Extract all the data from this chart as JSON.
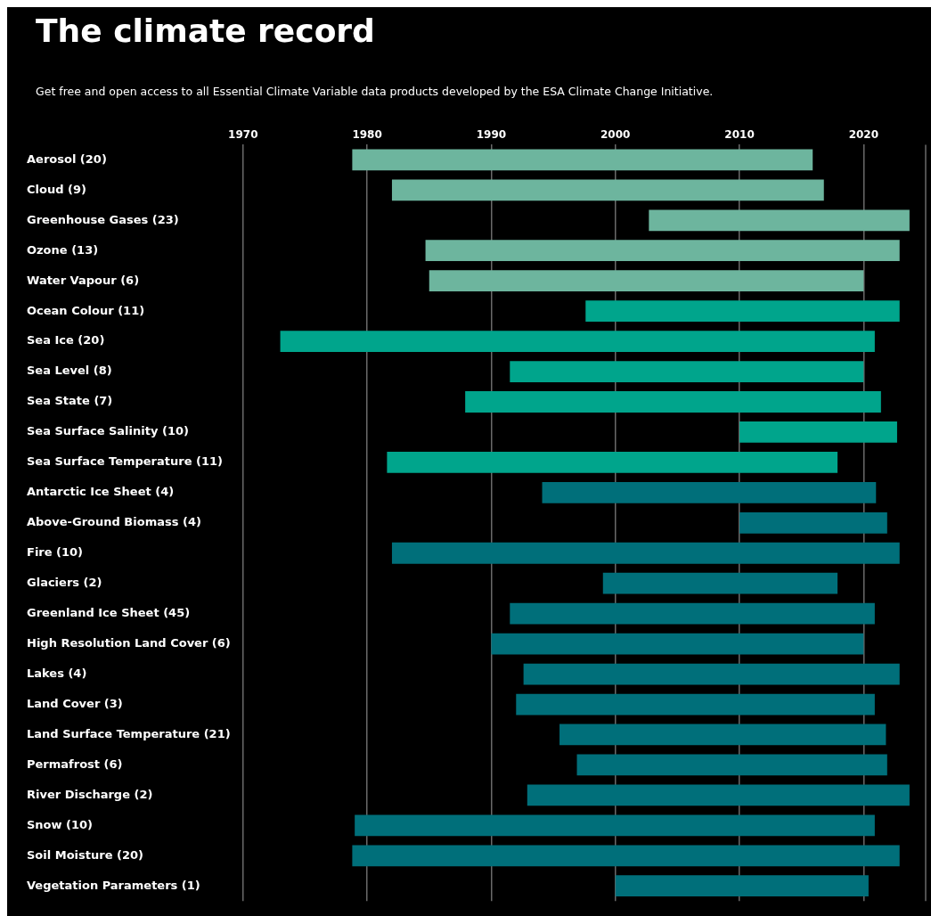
{
  "chart_data": {
    "type": "bar",
    "orientation": "horizontal",
    "title": "The climate record",
    "subtitle": "Get free and open access to all Essential Climate Variable data products developed by the ESA Climate Change Initiative.",
    "categories": [
      "Aerosol (20)",
      "Cloud (9)",
      "Greenhouse Gases (23)",
      "Ozone (13)",
      "Water Vapour (6)",
      "Ocean Colour (11)",
      "Sea Ice (20)",
      "Sea Level (8)",
      "Sea State (7)",
      "Sea Surface Salinity (10)",
      "Sea Surface Temperature (11)",
      "Antarctic Ice Sheet (4)",
      "Above-Ground Biomass (4)",
      "Fire (10)",
      "Glaciers (2)",
      "Greenland Ice Sheet (45)",
      "High Resolution Land Cover (6)",
      "Lakes (4)",
      "Land Cover (3)",
      "Land Surface Temperature (21)",
      "Permafrost (6)",
      "River Discharge (2)",
      "Snow (10)",
      "Soil Moisture (20)",
      "Vegetation Parameters (1)"
    ],
    "base": [
      1978.8,
      1982.0,
      2002.7,
      1984.7,
      1985.0,
      1997.6,
      1973.0,
      1991.5,
      1987.9,
      2010.0,
      1981.6,
      1994.1,
      2010.0,
      1982.0,
      1999.0,
      1991.5,
      1990.0,
      1992.6,
      1992.0,
      1995.5,
      1996.9,
      1992.9,
      1979.0,
      1978.8,
      2000.0
    ],
    "values": [
      37.1,
      34.8,
      21.0,
      38.2,
      35.0,
      25.3,
      47.9,
      28.5,
      33.5,
      12.7,
      36.3,
      26.9,
      11.9,
      40.9,
      18.9,
      29.4,
      30.0,
      30.3,
      28.9,
      26.3,
      25.0,
      30.8,
      41.9,
      44.1,
      20.4
    ],
    "colors": [
      "#6db59e",
      "#6db59e",
      "#6db59e",
      "#6db59e",
      "#6db59e",
      "#00a58c",
      "#00a58c",
      "#00a58c",
      "#00a58c",
      "#00a58c",
      "#00a58c",
      "#006f7a",
      "#006f7a",
      "#006f7a",
      "#006f7a",
      "#006f7a",
      "#006f7a",
      "#006f7a",
      "#006f7a",
      "#006f7a",
      "#006f7a",
      "#006f7a",
      "#006f7a",
      "#006f7a",
      "#006f7a"
    ],
    "xlim": [
      1970,
      2025
    ],
    "xticks": [
      1970,
      1980,
      1990,
      2000,
      2010,
      2020
    ],
    "grid": "x"
  }
}
